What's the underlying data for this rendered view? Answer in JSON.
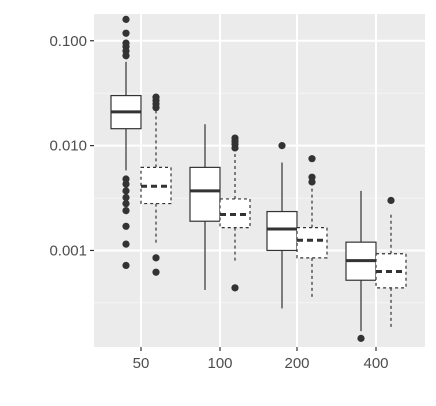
{
  "chart_data": {
    "type": "boxplot",
    "title": "",
    "xlabel": "",
    "ylabel": "",
    "y_scale": "log10",
    "ylim": [
      0.00012,
      0.18
    ],
    "grid": true,
    "legend": "none",
    "categories": [
      "50",
      "100",
      "200",
      "400"
    ],
    "y_ticks": [
      {
        "value": 0.1,
        "label": "0.100"
      },
      {
        "value": 0.01,
        "label": "0.010"
      },
      {
        "value": 0.001,
        "label": "0.001"
      }
    ],
    "y_minor_ticks": [
      0.0316,
      0.00316,
      0.000316
    ],
    "series": [
      {
        "line_style": "solid",
        "boxes": [
          {
            "category": "50",
            "q1": 0.0145,
            "median": 0.021,
            "q3": 0.03,
            "whisker_low": 0.0058,
            "whisker_high": 0.063,
            "outliers": [
              0.16,
              0.118,
              0.095,
              0.088,
              0.08,
              0.072,
              0.0048,
              0.0043,
              0.0037,
              0.0032,
              0.0028,
              0.0024,
              0.0017,
              0.00115,
              0.00072
            ]
          },
          {
            "category": "100",
            "q1": 0.0019,
            "median": 0.0037,
            "q3": 0.0062,
            "whisker_low": 0.00042,
            "whisker_high": 0.016,
            "outliers": []
          },
          {
            "category": "200",
            "q1": 0.001,
            "median": 0.0016,
            "q3": 0.00235,
            "whisker_low": 0.00028,
            "whisker_high": 0.0069,
            "outliers": [
              0.01
            ]
          },
          {
            "category": "400",
            "q1": 0.00052,
            "median": 0.0008,
            "q3": 0.0012,
            "whisker_low": 0.00017,
            "whisker_high": 0.0037,
            "outliers": [
              0.000145
            ]
          }
        ]
      },
      {
        "line_style": "dashed",
        "boxes": [
          {
            "category": "50",
            "q1": 0.0028,
            "median": 0.0041,
            "q3": 0.0062,
            "whisker_low": 0.00115,
            "whisker_high": 0.024,
            "outliers": [
              0.029,
              0.027,
              0.025,
              0.023,
              0.00085,
              0.00062
            ]
          },
          {
            "category": "100",
            "q1": 0.00165,
            "median": 0.0022,
            "q3": 0.0031,
            "whisker_low": 0.00078,
            "whisker_high": 0.0085,
            "outliers": [
              0.0118,
              0.011,
              0.0103,
              0.0095,
              0.00044
            ]
          },
          {
            "category": "200",
            "q1": 0.00085,
            "median": 0.00125,
            "q3": 0.00165,
            "whisker_low": 0.00034,
            "whisker_high": 0.004,
            "outliers": [
              0.0075,
              0.005,
              0.0045
            ]
          },
          {
            "category": "400",
            "q1": 0.00044,
            "median": 0.00063,
            "q3": 0.00093,
            "whisker_low": 0.00018,
            "whisker_high": 0.0022,
            "outliers": [
              0.003
            ]
          }
        ]
      }
    ]
  },
  "colors": {
    "panel_background": "#ebebeb",
    "grid_major": "#ffffff",
    "grid_minor": "#f5f5f5",
    "box_fill": "#ffffff",
    "stroke": "#333333",
    "tick_text": "#4d4d4d"
  }
}
